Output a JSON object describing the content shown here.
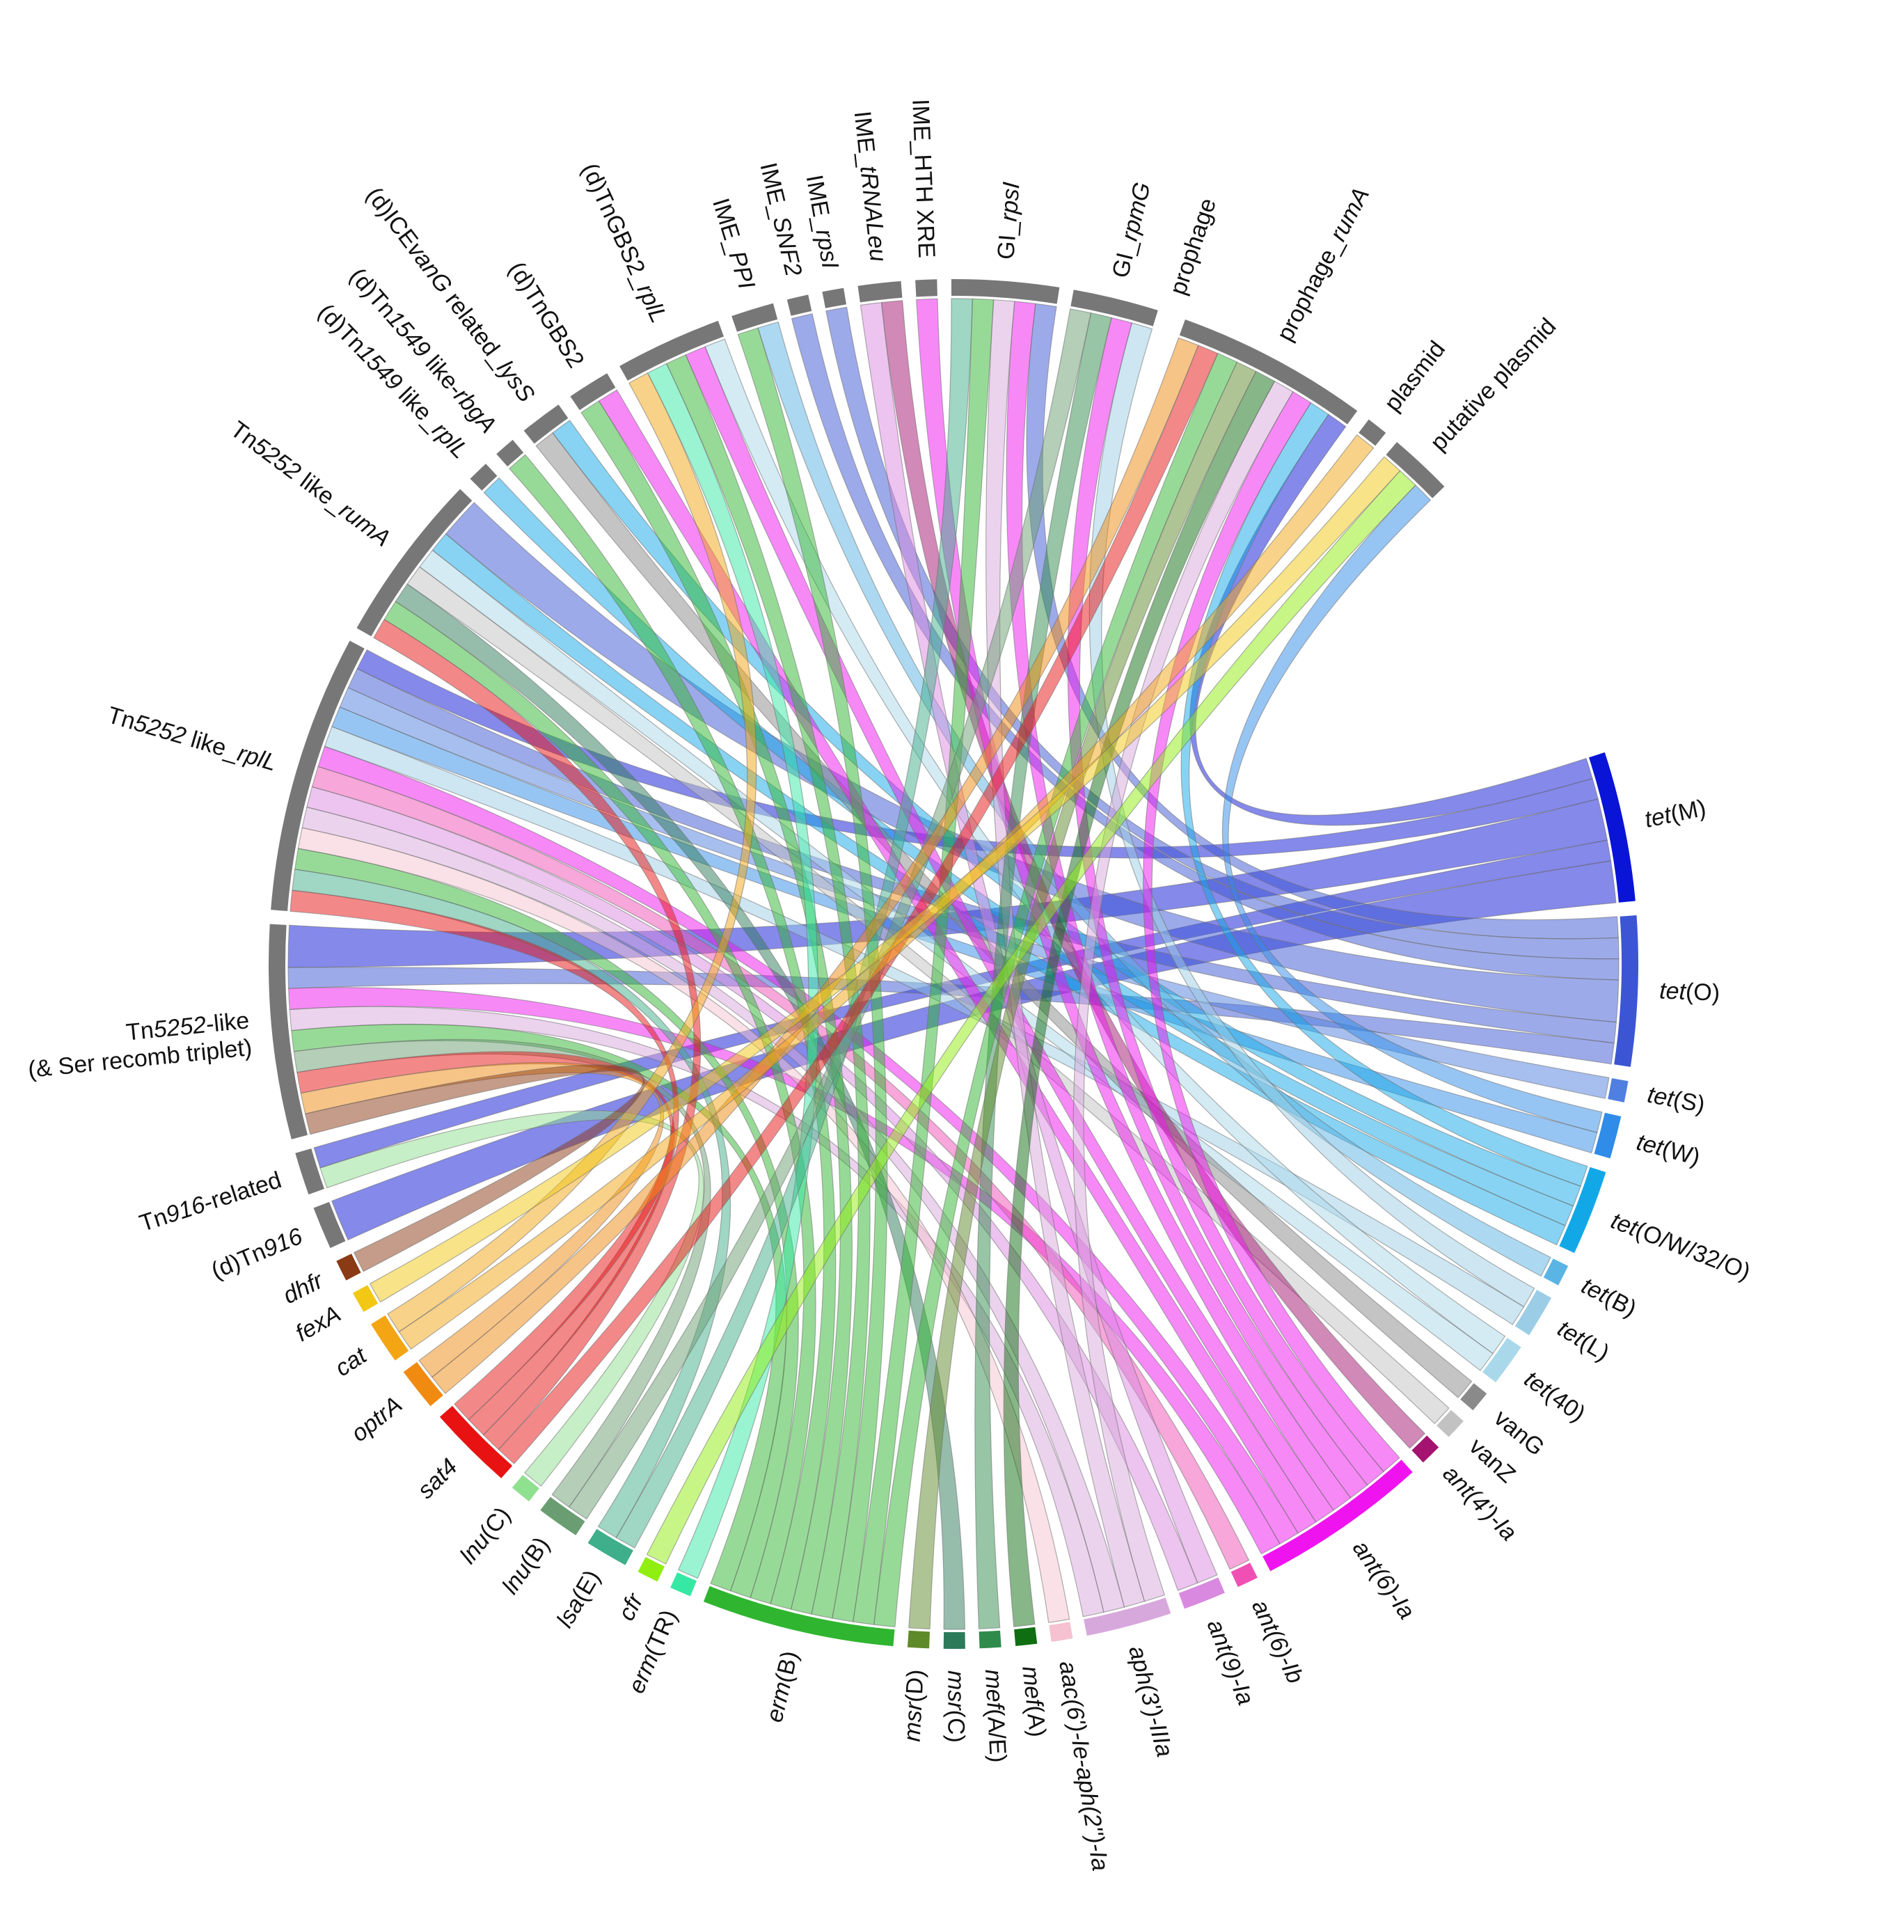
{
  "elements": [
    {
      "id": "tetM",
      "seg": [
        {
          "t": "tet",
          "i": true
        },
        {
          "t": "(M)"
        }
      ],
      "color": "#0a14d6"
    },
    {
      "id": "tetO",
      "seg": [
        {
          "t": "tet",
          "i": true
        },
        {
          "t": "(O)"
        }
      ],
      "color": "#3b55d4"
    },
    {
      "id": "tetS",
      "seg": [
        {
          "t": "tet",
          "i": true
        },
        {
          "t": "(S)"
        }
      ],
      "color": "#4f7fe0"
    },
    {
      "id": "tetW",
      "seg": [
        {
          "t": "tet",
          "i": true
        },
        {
          "t": "(W)"
        }
      ],
      "color": "#2f8ce8"
    },
    {
      "id": "tetOW32O",
      "seg": [
        {
          "t": "tet",
          "i": true
        },
        {
          "t": "(O/W/32/O)"
        }
      ],
      "color": "#12a8e8"
    },
    {
      "id": "tetB",
      "seg": [
        {
          "t": "tet",
          "i": true
        },
        {
          "t": "(B)"
        }
      ],
      "color": "#5ab4e4"
    },
    {
      "id": "tetL",
      "seg": [
        {
          "t": "tet",
          "i": true
        },
        {
          "t": "(L)"
        }
      ],
      "color": "#9ccde6"
    },
    {
      "id": "tet40",
      "seg": [
        {
          "t": "tet",
          "i": true
        },
        {
          "t": "(40)"
        }
      ],
      "color": "#a9d8ea"
    },
    {
      "id": "vanG",
      "seg": [
        {
          "t": "vanG"
        }
      ],
      "color": "#8a8a8a"
    },
    {
      "id": "vanZ",
      "seg": [
        {
          "t": "vanZ"
        }
      ],
      "color": "#c2c2c2"
    },
    {
      "id": "ant4",
      "seg": [
        {
          "t": "ant(4')-Ia",
          "i": true
        }
      ],
      "color": "#a3136f"
    },
    {
      "id": "ant6Ia",
      "seg": [
        {
          "t": "ant(6)-Ia",
          "i": true
        }
      ],
      "color": "#ef14ef"
    },
    {
      "id": "ant6Ib",
      "seg": [
        {
          "t": "ant(6)-Ib",
          "i": true
        }
      ],
      "color": "#f050b4"
    },
    {
      "id": "ant9Ia",
      "seg": [
        {
          "t": "ant(9)-Ia",
          "i": true
        }
      ],
      "color": "#d98ae0"
    },
    {
      "id": "aph3",
      "seg": [
        {
          "t": "aph(3')-IIIa",
          "i": true
        }
      ],
      "color": "#d7a8dc"
    },
    {
      "id": "aac6",
      "seg": [
        {
          "t": "aac(6')-Ie-aph(2'')-Ia",
          "i": true
        }
      ],
      "color": "#f6c1d0"
    },
    {
      "id": "mefA",
      "seg": [
        {
          "t": "mef",
          "i": true
        },
        {
          "t": "(A)"
        }
      ],
      "color": "#0f6e12"
    },
    {
      "id": "mefAE",
      "seg": [
        {
          "t": "mef",
          "i": true
        },
        {
          "t": "(A/E)"
        }
      ],
      "color": "#2f8b4b"
    },
    {
      "id": "msrC",
      "seg": [
        {
          "t": "msr",
          "i": true
        },
        {
          "t": "(C)"
        }
      ],
      "color": "#2d7a5a"
    },
    {
      "id": "msrD",
      "seg": [
        {
          "t": "msr",
          "i": true
        },
        {
          "t": "(D)"
        }
      ],
      "color": "#5f8a2a"
    },
    {
      "id": "ermB",
      "seg": [
        {
          "t": "erm",
          "i": true
        },
        {
          "t": "(B)"
        }
      ],
      "color": "#2fb52f"
    },
    {
      "id": "ermTR",
      "seg": [
        {
          "t": "erm",
          "i": true
        },
        {
          "t": "(TR)"
        }
      ],
      "color": "#35e8a4"
    },
    {
      "id": "cfr",
      "seg": [
        {
          "t": "cfr",
          "i": true
        }
      ],
      "color": "#90ee10"
    },
    {
      "id": "lsaE",
      "seg": [
        {
          "t": "lsa",
          "i": true
        },
        {
          "t": "(E)"
        }
      ],
      "color": "#3fae8a"
    },
    {
      "id": "lnuB",
      "seg": [
        {
          "t": "lnu",
          "i": true
        },
        {
          "t": "(B)"
        }
      ],
      "color": "#6a9e72"
    },
    {
      "id": "lnuC",
      "seg": [
        {
          "t": "lnu",
          "i": true
        },
        {
          "t": "(C)"
        }
      ],
      "color": "#8fe08f"
    },
    {
      "id": "sat4",
      "seg": [
        {
          "t": "sat4",
          "i": true
        }
      ],
      "color": "#e81212"
    },
    {
      "id": "optrA",
      "seg": [
        {
          "t": "optrA",
          "i": true
        }
      ],
      "color": "#f08a10"
    },
    {
      "id": "cat",
      "seg": [
        {
          "t": "cat",
          "i": true
        }
      ],
      "color": "#f3a514"
    },
    {
      "id": "fexA",
      "seg": [
        {
          "t": "fexA",
          "i": true
        }
      ],
      "color": "#f2c814"
    },
    {
      "id": "dhfr",
      "seg": [
        {
          "t": "dhfr",
          "i": true
        }
      ],
      "color": "#8a3a14"
    },
    {
      "id": "dTn916",
      "seg": [
        {
          "t": "(d)Tn"
        },
        {
          "t": "916",
          "i": true
        }
      ],
      "color": "#777777"
    },
    {
      "id": "Tn916rel",
      "seg": [
        {
          "t": "Tn"
        },
        {
          "t": "916",
          "i": true
        },
        {
          "t": "-related"
        }
      ],
      "color": "#777777"
    },
    {
      "id": "Tn5252triplet",
      "seg": [
        {
          "t": "Tn"
        },
        {
          "t": "5252",
          "i": true
        },
        {
          "t": "-like"
        }
      ],
      "seg2": [
        {
          "t": "(& Ser recomb triplet)"
        }
      ],
      "color": "#777777"
    },
    {
      "id": "Tn5252rplL",
      "seg": [
        {
          "t": "Tn"
        },
        {
          "t": "5252",
          "i": true
        },
        {
          "t": " like_"
        },
        {
          "t": "rplL",
          "i": true
        }
      ],
      "color": "#777777"
    },
    {
      "id": "Tn5252rumA",
      "seg": [
        {
          "t": "Tn"
        },
        {
          "t": "5252",
          "i": true
        },
        {
          "t": " like_"
        },
        {
          "t": "rumA",
          "i": true
        }
      ],
      "color": "#777777"
    },
    {
      "id": "Tn1549rplL",
      "seg": [
        {
          "t": "(d)Tn"
        },
        {
          "t": "1549",
          "i": true
        },
        {
          "t": " like_"
        },
        {
          "t": "rplL",
          "i": true
        }
      ],
      "color": "#777777"
    },
    {
      "id": "Tn1549rbgA",
      "seg": [
        {
          "t": "(d)Tn"
        },
        {
          "t": "1549",
          "i": true
        },
        {
          "t": " like-"
        },
        {
          "t": "rbgA",
          "i": true
        }
      ],
      "color": "#777777"
    },
    {
      "id": "ICEvanG",
      "seg": [
        {
          "t": "(d)ICE"
        },
        {
          "t": "vanG",
          "i": true
        },
        {
          "t": " related_"
        },
        {
          "t": "lysS",
          "i": true
        }
      ],
      "color": "#777777"
    },
    {
      "id": "dTnGBS2",
      "seg": [
        {
          "t": "(d)TnGBS2"
        }
      ],
      "color": "#777777"
    },
    {
      "id": "dTnGBS2rplL",
      "seg": [
        {
          "t": "(d)TnGBS2_"
        },
        {
          "t": "rplL",
          "i": true
        }
      ],
      "color": "#777777"
    },
    {
      "id": "IMEPPI",
      "seg": [
        {
          "t": "IME_"
        },
        {
          "t": "PPI",
          "i": true
        }
      ],
      "color": "#777777"
    },
    {
      "id": "IMESNF2",
      "seg": [
        {
          "t": "IME_"
        },
        {
          "t": "SNF2",
          "i": true
        }
      ],
      "color": "#777777"
    },
    {
      "id": "IMErpsI",
      "seg": [
        {
          "t": "IME_"
        },
        {
          "t": "rpsI",
          "i": true
        }
      ],
      "color": "#777777"
    },
    {
      "id": "IMEtRNA",
      "seg": [
        {
          "t": "IME_"
        },
        {
          "t": "tRNALeu",
          "i": true
        }
      ],
      "color": "#777777"
    },
    {
      "id": "IMEHTH",
      "seg": [
        {
          "t": "IME_HTH XRE"
        }
      ],
      "color": "#777777"
    },
    {
      "id": "GIrpsI",
      "seg": [
        {
          "t": "GI_"
        },
        {
          "t": "rpsI",
          "i": true
        }
      ],
      "color": "#777777"
    },
    {
      "id": "GIrpmG",
      "seg": [
        {
          "t": "GI_"
        },
        {
          "t": "rpmG",
          "i": true
        }
      ],
      "color": "#777777"
    },
    {
      "id": "prophage",
      "seg": [
        {
          "t": "prophage"
        }
      ],
      "color": "#777777"
    },
    {
      "id": "prophagerumA",
      "seg": [
        {
          "t": "prophage_"
        },
        {
          "t": "rumA",
          "i": true
        }
      ],
      "color": "#777777"
    },
    {
      "id": "plasmid",
      "seg": [
        {
          "t": "plasmid"
        }
      ],
      "color": "#777777"
    },
    {
      "id": "putplasmid",
      "seg": [
        {
          "t": "putative plasmid"
        }
      ],
      "color": "#777777"
    }
  ],
  "links": [
    [
      "tetM",
      "Tn5252triplet",
      2
    ],
    [
      "tetM",
      "dTn916",
      2
    ],
    [
      "tetM",
      "Tn5252rplL",
      1
    ],
    [
      "tetM",
      "Tn916rel",
      1
    ],
    [
      "tetM",
      "prophagerumA",
      1
    ],
    [
      "tetO",
      "Tn5252rumA",
      2
    ],
    [
      "tetO",
      "IMESNF2",
      1
    ],
    [
      "tetO",
      "IMErpsI",
      1
    ],
    [
      "tetO",
      "Tn5252rplL",
      1
    ],
    [
      "tetO",
      "Tn5252triplet",
      1
    ],
    [
      "tetO",
      "GIrpsI",
      1
    ],
    [
      "tetS",
      "Tn5252rplL",
      1
    ],
    [
      "tetW",
      "Tn5252rplL",
      1
    ],
    [
      "tetW",
      "putplasmid",
      1
    ],
    [
      "tetOW32O",
      "Tn5252rumA",
      1
    ],
    [
      "tetOW32O",
      "ICEvanG",
      1
    ],
    [
      "tetOW32O",
      "prophagerumA",
      1
    ],
    [
      "tetOW32O",
      "Tn1549rplL",
      1
    ],
    [
      "tetB",
      "IMEPPI",
      1
    ],
    [
      "tetL",
      "Tn5252rplL",
      1
    ],
    [
      "tetL",
      "GIrpmG",
      1
    ],
    [
      "tet40",
      "Tn5252rumA",
      1
    ],
    [
      "tet40",
      "dTnGBS2rplL",
      1
    ],
    [
      "vanG",
      "ICEvanG",
      1
    ],
    [
      "vanZ",
      "Tn5252rumA",
      1
    ],
    [
      "ant4",
      "IMEtRNA",
      1
    ],
    [
      "ant6Ia",
      "IMEHTH",
      1
    ],
    [
      "ant6Ia",
      "Tn5252rplL",
      1
    ],
    [
      "ant6Ia",
      "GIrpmG",
      1
    ],
    [
      "ant6Ia",
      "dTnGBS2",
      1
    ],
    [
      "ant6Ia",
      "dTnGBS2rplL",
      1
    ],
    [
      "ant6Ia",
      "prophagerumA",
      1
    ],
    [
      "ant6Ia",
      "Tn5252triplet",
      1
    ],
    [
      "ant6Ia",
      "GIrpsI",
      1
    ],
    [
      "ant6Ib",
      "Tn5252rplL",
      1
    ],
    [
      "ant9Ia",
      "IMEtRNA",
      1
    ],
    [
      "ant9Ia",
      "Tn5252rplL",
      1
    ],
    [
      "aph3",
      "Tn5252triplet",
      1
    ],
    [
      "aph3",
      "GIrpsI",
      1
    ],
    [
      "aph3",
      "Tn5252rplL",
      1
    ],
    [
      "aph3",
      "prophagerumA",
      1
    ],
    [
      "aac6",
      "Tn5252rplL",
      1
    ],
    [
      "mefA",
      "prophagerumA",
      1
    ],
    [
      "mefAE",
      "GIrpmG",
      1
    ],
    [
      "msrC",
      "Tn5252rumA",
      1
    ],
    [
      "msrD",
      "prophagerumA",
      1
    ],
    [
      "ermB",
      "Tn5252rumA",
      1
    ],
    [
      "ermB",
      "IMEPPI",
      1
    ],
    [
      "ermB",
      "dTnGBS2",
      1
    ],
    [
      "ermB",
      "dTnGBS2rplL",
      1
    ],
    [
      "ermB",
      "Tn5252rplL",
      1
    ],
    [
      "ermB",
      "GIrpsI",
      1
    ],
    [
      "ermB",
      "prophagerumA",
      1
    ],
    [
      "ermB",
      "Tn1549rbgA",
      1
    ],
    [
      "ermB",
      "Tn5252triplet",
      1
    ],
    [
      "ermTR",
      "dTnGBS2rplL",
      1
    ],
    [
      "cfr",
      "putplasmid",
      1
    ],
    [
      "lsaE",
      "Tn5252rplL",
      1
    ],
    [
      "lsaE",
      "GIrpsI",
      1
    ],
    [
      "lnuB",
      "GIrpmG",
      1
    ],
    [
      "lnuB",
      "Tn5252triplet",
      1
    ],
    [
      "lnuC",
      "Tn916rel",
      1
    ],
    [
      "sat4",
      "Tn5252rumA",
      1
    ],
    [
      "sat4",
      "Tn5252rplL",
      1
    ],
    [
      "sat4",
      "Tn5252triplet",
      1
    ],
    [
      "sat4",
      "prophagerumA",
      1
    ],
    [
      "optrA",
      "prophagerumA",
      1
    ],
    [
      "optrA",
      "Tn5252triplet",
      1
    ],
    [
      "cat",
      "plasmid",
      1
    ],
    [
      "cat",
      "dTnGBS2rplL",
      1
    ],
    [
      "fexA",
      "putplasmid",
      1
    ],
    [
      "dhfr",
      "Tn5252triplet",
      1
    ]
  ]
}
